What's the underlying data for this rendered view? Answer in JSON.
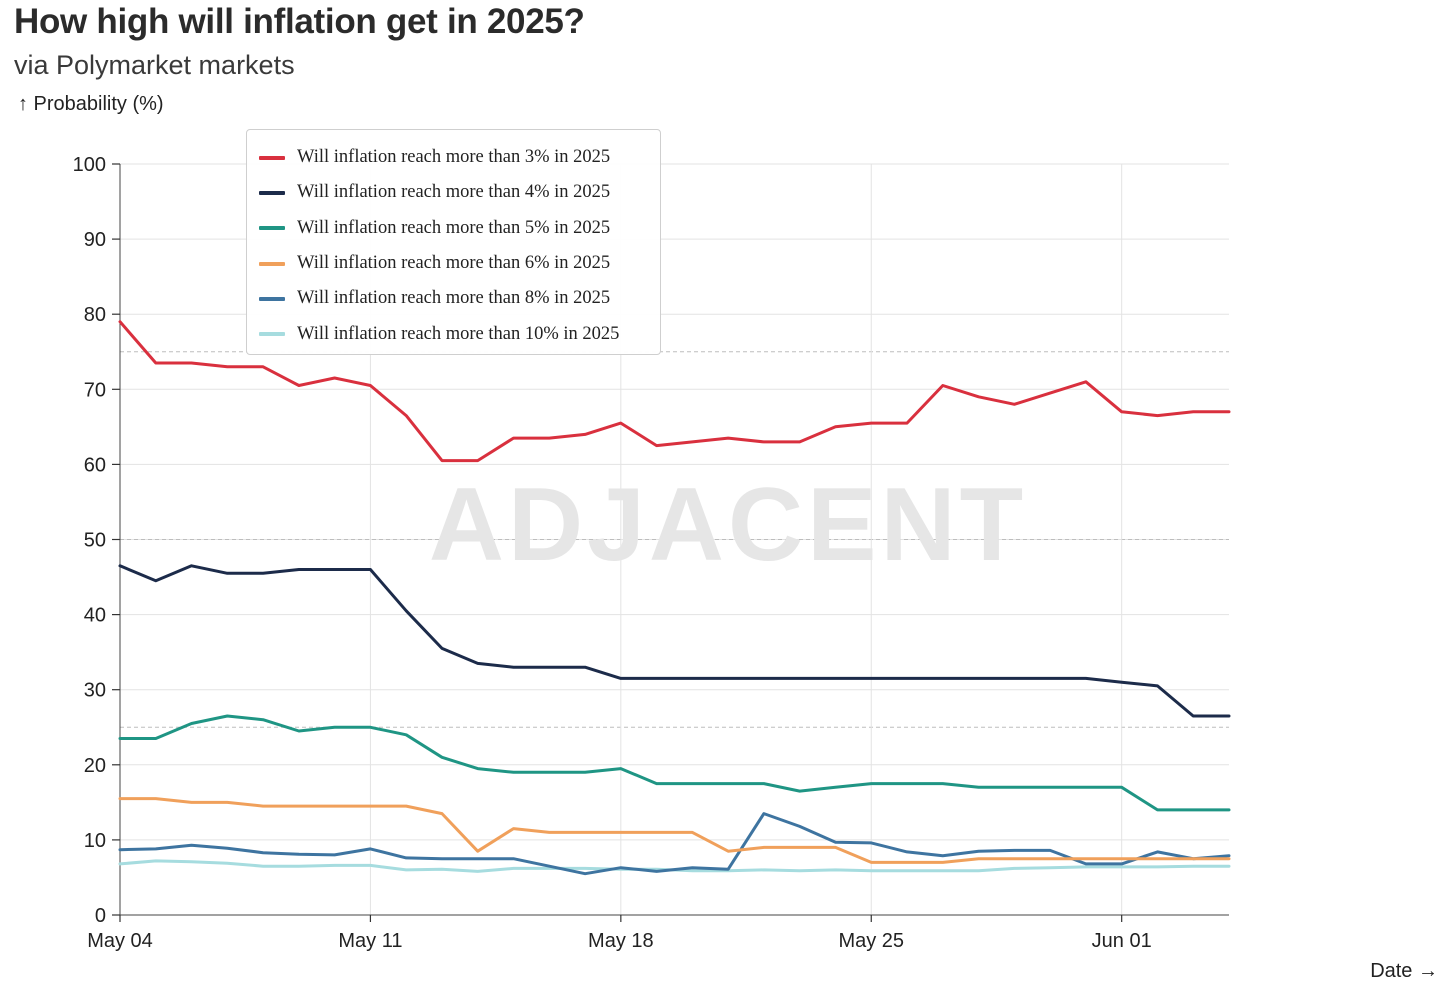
{
  "header": {
    "title": "How high will inflation get in 2025?",
    "subtitle": "via Polymarket markets"
  },
  "chart_data": {
    "type": "line",
    "title": "How high will inflation get in 2025?",
    "subtitle": "via Polymarket markets",
    "ylabel": "↑ Probability (%)",
    "xlabel": "Date →",
    "ylim": [
      0,
      100
    ],
    "y_ticks": [
      0,
      10,
      20,
      30,
      40,
      50,
      60,
      70,
      80,
      90,
      100
    ],
    "x_ticks": [
      "May 04",
      "May 11",
      "May 18",
      "May 25",
      "Jun 01"
    ],
    "x_tick_positions": [
      0,
      7,
      14,
      21,
      28
    ],
    "x_range": [
      0,
      31
    ],
    "x_dates": [
      "May 04",
      "May 05",
      "May 06",
      "May 07",
      "May 08",
      "May 09",
      "May 10",
      "May 11",
      "May 12",
      "May 13",
      "May 14",
      "May 15",
      "May 16",
      "May 17",
      "May 18",
      "May 19",
      "May 20",
      "May 21",
      "May 22",
      "May 23",
      "May 24",
      "May 25",
      "May 26",
      "May 27",
      "May 28",
      "May 29",
      "May 30",
      "May 31",
      "Jun 01",
      "Jun 02",
      "Jun 03",
      "Jun 04"
    ],
    "dashed_reference_lines": [
      25,
      50,
      75
    ],
    "watermark": "ADJACENT",
    "legend_position": "top-left",
    "series": [
      {
        "name": "Will inflation reach more than 3% in 2025",
        "color": "#d9303e",
        "values": [
          79,
          73.5,
          73.5,
          73,
          73,
          70.5,
          71.5,
          70.5,
          66.5,
          60.5,
          60.5,
          63.5,
          63.5,
          64,
          65.5,
          62.5,
          63,
          63.5,
          63,
          63,
          65,
          65.5,
          65.5,
          70.5,
          69,
          68,
          69.5,
          71,
          67,
          66.5,
          67,
          67
        ]
      },
      {
        "name": "Will inflation reach more than 4% in 2025",
        "color": "#1c2b4a",
        "values": [
          46.5,
          44.5,
          46.5,
          45.5,
          45.5,
          46,
          46,
          46,
          40.5,
          35.5,
          33.5,
          33,
          33,
          33,
          31.5,
          31.5,
          31.5,
          31.5,
          31.5,
          31.5,
          31.5,
          31.5,
          31.5,
          31.5,
          31.5,
          31.5,
          31.5,
          31.5,
          31,
          30.5,
          26.5,
          26.5
        ]
      },
      {
        "name": "Will inflation reach more than 5% in 2025",
        "color": "#1f9584",
        "values": [
          23.5,
          23.5,
          25.5,
          26.5,
          26,
          24.5,
          25,
          25,
          24,
          21,
          19.5,
          19,
          19,
          19,
          19.5,
          17.5,
          17.5,
          17.5,
          17.5,
          16.5,
          17,
          17.5,
          17.5,
          17.5,
          17,
          17,
          17,
          17,
          17,
          14,
          14,
          14
        ]
      },
      {
        "name": "Will inflation reach more than 6% in 2025",
        "color": "#f0a05b",
        "values": [
          15.5,
          15.5,
          15,
          15,
          14.5,
          14.5,
          14.5,
          14.5,
          14.5,
          13.5,
          8.5,
          11.5,
          11,
          11,
          11,
          11,
          11,
          8.5,
          9,
          9,
          9,
          7,
          7,
          7,
          7.5,
          7.5,
          7.5,
          7.5,
          7.5,
          7.5,
          7.5,
          7.5
        ]
      },
      {
        "name": "Will inflation reach more than 8% in 2025",
        "color": "#3e74a0",
        "values": [
          8.7,
          8.8,
          9.3,
          8.9,
          8.3,
          8.1,
          8.0,
          8.8,
          7.6,
          7.5,
          7.5,
          7.5,
          6.5,
          5.5,
          6.3,
          5.8,
          6.3,
          6.1,
          13.5,
          11.8,
          9.7,
          9.6,
          8.4,
          7.9,
          8.5,
          8.6,
          8.6,
          6.8,
          6.8,
          8.4,
          7.5,
          7.9
        ]
      },
      {
        "name": "Will inflation reach more than 10% in 2025",
        "color": "#a6dcdf",
        "values": [
          6.8,
          7.2,
          7.1,
          6.9,
          6.5,
          6.5,
          6.6,
          6.6,
          6.0,
          6.1,
          5.8,
          6.2,
          6.2,
          6.2,
          6.1,
          6.1,
          5.9,
          5.9,
          6.0,
          5.9,
          6.0,
          5.9,
          5.9,
          5.9,
          5.9,
          6.2,
          6.3,
          6.4,
          6.4,
          6.4,
          6.5,
          6.5
        ]
      }
    ]
  }
}
